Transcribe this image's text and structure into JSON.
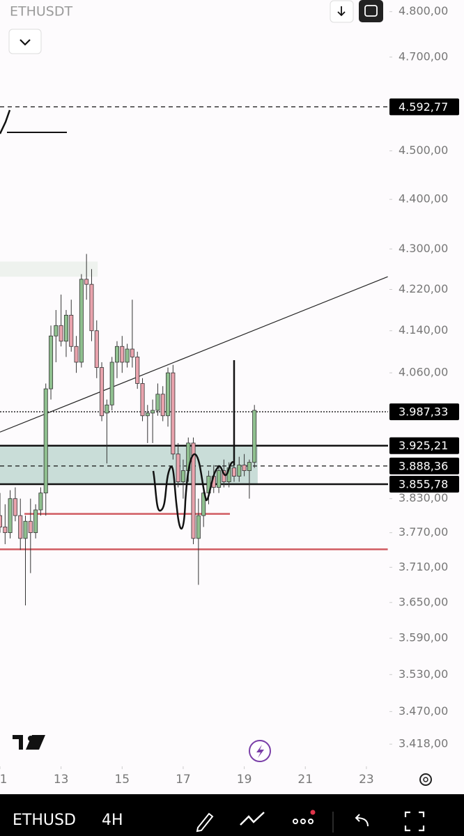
{
  "ui": {
    "symbol": "ETHUSDT",
    "bottom_symbol": "ETHUSD",
    "interval": "4H"
  },
  "chart_data": {
    "type": "candlestick",
    "log": true,
    "xlim": [
      11,
      23.71
    ],
    "ylim": [
      3383,
      4826
    ],
    "x": [
      11,
      11.167,
      11.333,
      11.5,
      11.667,
      11.833,
      12,
      12.167,
      12.333,
      12.5,
      12.667,
      12.833,
      13,
      13.167,
      13.333,
      13.5,
      13.667,
      13.833,
      14,
      14.167,
      14.333,
      14.5,
      14.667,
      14.833,
      15,
      15.167,
      15.333,
      15.5,
      15.667,
      15.833,
      16,
      16.167,
      16.333,
      16.5,
      16.667,
      16.833,
      17,
      17.167,
      17.333,
      17.5,
      17.667,
      17.833,
      18,
      18.167,
      18.333,
      18.5,
      18.667,
      18.833,
      19,
      19.167,
      19.333
    ],
    "open": [
      3800,
      3780,
      3770,
      3830,
      3800,
      3760,
      3790,
      3770,
      3810,
      3840,
      4030,
      4130,
      4150,
      4120,
      4170,
      4110,
      4080,
      4240,
      4230,
      4140,
      4070,
      3985,
      4000,
      4080,
      4110,
      4080,
      4105,
      4090,
      4040,
      3980,
      3985,
      3990,
      4020,
      3980,
      4060,
      3910,
      3860,
      3880,
      3930,
      3760,
      3800,
      3840,
      3870,
      3850,
      3880,
      3860,
      3885,
      3870,
      3890,
      3880,
      3895
    ],
    "high": [
      3840,
      3820,
      3845,
      3850,
      3830,
      3800,
      3830,
      3820,
      3850,
      4040,
      4150,
      4180,
      4210,
      4180,
      4200,
      4130,
      4250,
      4290,
      4260,
      4160,
      4080,
      4010,
      4090,
      4120,
      4130,
      4115,
      4200,
      4100,
      4050,
      4000,
      4010,
      4040,
      4035,
      4070,
      4075,
      3930,
      3900,
      3940,
      3940,
      3830,
      3850,
      3880,
      3890,
      3890,
      3900,
      3895,
      3900,
      3905,
      3910,
      3900,
      4000
    ],
    "low": [
      3770,
      3750,
      3760,
      3790,
      3740,
      3645,
      3700,
      3760,
      3800,
      3800,
      4010,
      4080,
      4110,
      4090,
      4100,
      4060,
      4070,
      4200,
      4120,
      4050,
      3970,
      3893,
      3990,
      4050,
      4060,
      4070,
      4070,
      4030,
      3970,
      3930,
      3930,
      3980,
      3970,
      3960,
      3900,
      3850,
      3830,
      3860,
      3750,
      3680,
      3780,
      3820,
      3840,
      3840,
      3850,
      3850,
      3860,
      3860,
      3870,
      3830,
      3885
    ],
    "close": [
      3780,
      3770,
      3830,
      3800,
      3760,
      3790,
      3770,
      3810,
      3840,
      4030,
      4130,
      4150,
      4120,
      4170,
      4110,
      4080,
      4240,
      4230,
      4140,
      4070,
      3980,
      4000,
      4080,
      4110,
      4080,
      4105,
      4090,
      4040,
      3980,
      3985,
      3990,
      4020,
      3980,
      4060,
      3910,
      3860,
      3880,
      3930,
      3760,
      3800,
      3840,
      3870,
      3850,
      3880,
      3860,
      3885,
      3870,
      3890,
      3880,
      3895,
      3990
    ],
    "up_color": "#8fc08f",
    "down_color": "#e9a3ad",
    "yticks": [
      {
        "value": 4800,
        "label": "4.800,00"
      },
      {
        "value": 4700,
        "label": "4.700,00"
      },
      {
        "value": 4500,
        "label": "4.500,00"
      },
      {
        "value": 4400,
        "label": "4.400,00"
      },
      {
        "value": 4300,
        "label": "4.300,00"
      },
      {
        "value": 4220,
        "label": "4.220,00"
      },
      {
        "value": 4140,
        "label": "4.140,00"
      },
      {
        "value": 4060,
        "label": "4.060,00"
      },
      {
        "value": 3830,
        "label": "3.830,00"
      },
      {
        "value": 3770,
        "label": "3.770,00"
      },
      {
        "value": 3710,
        "label": "3.710,00"
      },
      {
        "value": 3650,
        "label": "3.650,00"
      },
      {
        "value": 3590,
        "label": "3.590,00"
      },
      {
        "value": 3530,
        "label": "3.530,00"
      },
      {
        "value": 3470,
        "label": "3.470,00"
      },
      {
        "value": 3418,
        "label": "3.418,00"
      }
    ],
    "xticks": [
      {
        "value": 11,
        "label": "1"
      },
      13,
      15,
      17,
      19,
      21,
      23
    ],
    "price_tags": [
      {
        "value": 4592.77,
        "label": "4.592,77",
        "style": "dashed"
      },
      {
        "value": 3987.33,
        "label": "3.987,33",
        "style": "dotted"
      },
      {
        "value": 3925.21,
        "label": "3.925,21",
        "style": "solid"
      },
      {
        "value": 3888.36,
        "label": "3.888,36",
        "style": "dashed"
      },
      {
        "value": 3855.78,
        "label": "3.855,78",
        "style": "solid"
      }
    ],
    "zone": {
      "x": [
        11,
        19.44
      ],
      "y": [
        3855.78,
        3925.21
      ],
      "color": "#c9ddd8"
    },
    "top_zone": {
      "x": [
        11,
        14.2
      ],
      "y": [
        4245,
        4275
      ],
      "color": "#eef2ee"
    },
    "trendline": {
      "x": [
        11,
        23.7
      ],
      "y": [
        3950,
        4245
      ]
    },
    "red_lines": [
      {
        "x": [
          11.8,
          18.53
        ],
        "y": 3803
      },
      {
        "x": [
          11,
          23.7
        ],
        "y": 3741
      }
    ],
    "red_color": "#d05a60"
  }
}
